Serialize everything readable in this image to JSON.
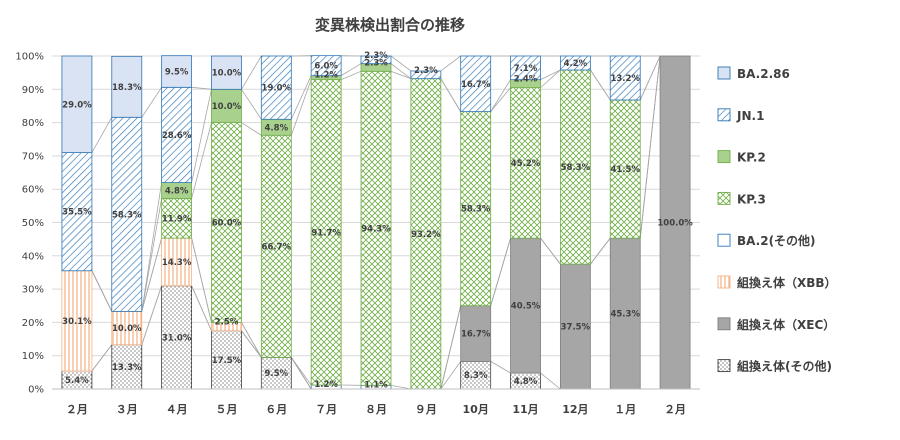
{
  "chart_data": {
    "type": "bar",
    "stacked": true,
    "title": "変異株検出割合の推移",
    "categories": [
      "２月",
      "３月",
      "４月",
      "５月",
      "６月",
      "７月",
      "８月",
      "９月",
      "10月",
      "11月",
      "12月",
      "１月",
      "２月"
    ],
    "ylim": [
      0,
      100
    ],
    "yticks": [
      "0%",
      "10%",
      "20%",
      "30%",
      "40%",
      "50%",
      "60%",
      "70%",
      "80%",
      "90%",
      "100%"
    ],
    "legend_position": "right",
    "series": [
      {
        "name": "組換え体(その他)",
        "pattern": "dots",
        "color": "#404040",
        "values": [
          5.4,
          13.3,
          31.0,
          17.5,
          9.5,
          0,
          0,
          0,
          8.3,
          4.8,
          0,
          0,
          0
        ],
        "labels": [
          "5.4%",
          "13.3%",
          "31.0%",
          "17.5%",
          "9.5%",
          "",
          "",
          "",
          "8.3%",
          "4.8%",
          "",
          "",
          ""
        ]
      },
      {
        "name": "組換え体（XEC）",
        "pattern": "solid",
        "color": "#a6a6a6",
        "values": [
          0,
          0,
          0,
          0,
          0,
          0,
          0,
          0,
          16.7,
          40.5,
          37.5,
          45.3,
          100.0
        ],
        "labels": [
          "",
          "",
          "",
          "",
          "",
          "",
          "",
          "",
          "16.7%",
          "40.5%",
          "37.5%",
          "45.3%",
          "100.0%"
        ]
      },
      {
        "name": "組換え体（XBB）",
        "pattern": "vlines",
        "color": "#f4b183",
        "values": [
          30.1,
          10.0,
          14.3,
          2.5,
          0,
          0,
          0,
          0,
          0,
          0,
          0,
          0,
          0
        ],
        "labels": [
          "30.1%",
          "10.0%",
          "14.3%",
          "2.5%",
          "",
          "",
          "",
          "",
          "",
          "",
          "",
          "",
          ""
        ]
      },
      {
        "name": "BA.2(その他)",
        "pattern": "empty",
        "color": "#2e75b6",
        "values": [
          0,
          0,
          0,
          0,
          0,
          1.2,
          1.1,
          0,
          0,
          0,
          0,
          0,
          0
        ],
        "labels": [
          "",
          "",
          "",
          "",
          "",
          "1.2%",
          "1.1%",
          "",
          "",
          "",
          "",
          "",
          ""
        ]
      },
      {
        "name": "KP.3",
        "pattern": "zigzag",
        "color": "#70ad47",
        "values": [
          0,
          0,
          11.9,
          60.0,
          66.7,
          91.7,
          94.3,
          93.2,
          58.3,
          45.2,
          58.3,
          41.5,
          0
        ],
        "labels": [
          "",
          "",
          "11.9%",
          "60.0%",
          "66.7%",
          "91.7%",
          "94.3%",
          "93.2%",
          "58.3%",
          "45.2%",
          "58.3%",
          "41.5%",
          ""
        ]
      },
      {
        "name": "KP.2",
        "pattern": "solid",
        "color": "#a9d18e",
        "values": [
          0,
          0,
          4.8,
          10.0,
          4.8,
          1.2,
          2.3,
          0,
          0,
          2.4,
          0,
          0,
          0
        ],
        "labels": [
          "",
          "",
          "4.8%",
          "10.0%",
          "4.8%",
          "1.2%",
          "2.3%",
          "",
          "",
          "2.4%",
          "",
          "",
          ""
        ]
      },
      {
        "name": "JN.1",
        "pattern": "diag",
        "color": "#2e75b6",
        "values": [
          35.5,
          58.3,
          28.6,
          0,
          19.0,
          6.0,
          2.3,
          2.3,
          16.7,
          7.1,
          4.2,
          13.2,
          0
        ],
        "labels": [
          "35.5%",
          "58.3%",
          "28.6%",
          "",
          "19.0%",
          "6.0%",
          "2.3%",
          "2.3%",
          "16.7%",
          "7.1%",
          "4.2%",
          "13.2%",
          ""
        ]
      },
      {
        "name": "BA.2.86",
        "pattern": "solid",
        "color": "#dae3f3",
        "values": [
          29.0,
          18.3,
          9.5,
          10.0,
          0,
          0,
          0,
          0,
          0,
          0,
          0,
          0,
          0
        ],
        "labels": [
          "29.0%",
          "18.3%",
          "9.5%",
          "10.0%",
          "",
          "",
          "",
          "",
          "",
          "",
          "",
          "",
          ""
        ]
      }
    ],
    "legend_order": [
      "BA.2.86",
      "JN.1",
      "KP.2",
      "KP.3",
      "BA.2(その他)",
      "組換え体（XBB）",
      "組換え体（XEC）",
      "組換え体(その他)"
    ]
  }
}
